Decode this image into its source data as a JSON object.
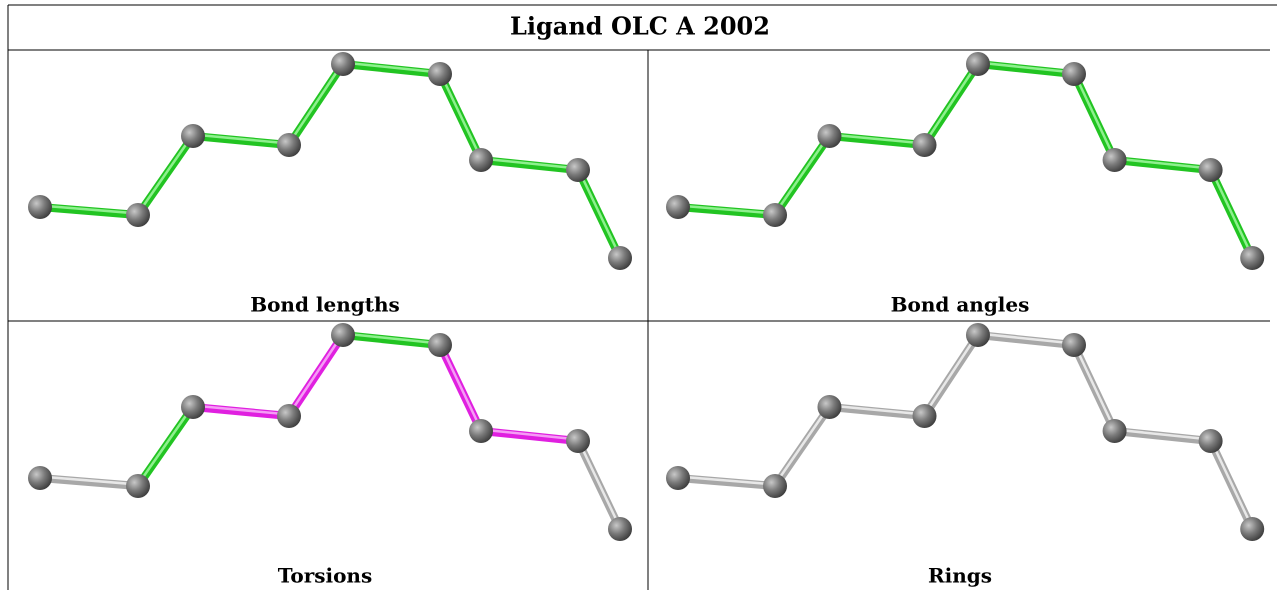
{
  "title": "Ligand OLC A 2002",
  "panels": [
    {
      "label": "Bond lengths"
    },
    {
      "label": "Bond angles"
    },
    {
      "label": "Torsions"
    },
    {
      "label": "Rings"
    }
  ]
}
